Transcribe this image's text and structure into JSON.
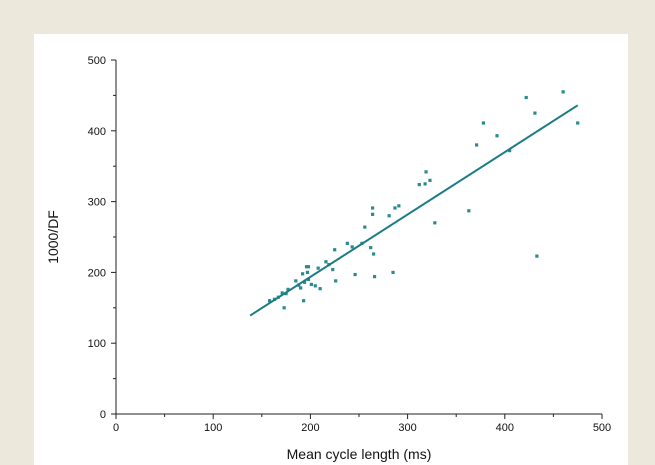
{
  "chart_data": {
    "type": "scatter",
    "xlabel": "Mean cycle length (ms)",
    "ylabel": "1000/DF",
    "xlim": [
      0,
      500
    ],
    "ylim": [
      0,
      500
    ],
    "xticks": [
      0,
      100,
      200,
      300,
      400,
      500
    ],
    "yticks": [
      0,
      100,
      200,
      300,
      400,
      500
    ],
    "x_tick_labels": [
      "0",
      "100",
      "200",
      "300",
      "400",
      "500"
    ],
    "y_tick_labels": [
      "0",
      "100",
      "200",
      "300",
      "400",
      "500"
    ],
    "grid": false,
    "colors": {
      "points": "#2a8a8c",
      "fit_line": "#1a7d83",
      "axis": "#222222",
      "background": "#ece9dc",
      "panel": "#ffffff"
    },
    "points": [
      [
        158,
        160
      ],
      [
        163,
        162
      ],
      [
        167,
        165
      ],
      [
        171,
        171
      ],
      [
        173,
        150
      ],
      [
        175,
        170
      ],
      [
        177,
        176
      ],
      [
        185,
        188
      ],
      [
        188,
        182
      ],
      [
        190,
        178
      ],
      [
        192,
        198
      ],
      [
        193,
        160
      ],
      [
        194,
        186
      ],
      [
        196,
        208
      ],
      [
        197,
        200
      ],
      [
        198,
        208
      ],
      [
        198,
        190
      ],
      [
        201,
        183
      ],
      [
        205,
        181
      ],
      [
        208,
        206
      ],
      [
        210,
        177
      ],
      [
        216,
        215
      ],
      [
        219,
        211
      ],
      [
        223,
        204
      ],
      [
        225,
        232
      ],
      [
        226,
        188
      ],
      [
        238,
        241
      ],
      [
        243,
        236
      ],
      [
        246,
        197
      ],
      [
        253,
        241
      ],
      [
        256,
        264
      ],
      [
        262,
        235
      ],
      [
        264,
        282
      ],
      [
        264,
        291
      ],
      [
        265,
        226
      ],
      [
        266,
        194
      ],
      [
        281,
        280
      ],
      [
        285,
        200
      ],
      [
        287,
        291
      ],
      [
        291,
        294
      ],
      [
        312,
        324
      ],
      [
        318,
        325
      ],
      [
        319,
        342
      ],
      [
        323,
        330
      ],
      [
        328,
        270
      ],
      [
        363,
        287
      ],
      [
        371,
        380
      ],
      [
        378,
        411
      ],
      [
        392,
        393
      ],
      [
        405,
        372
      ],
      [
        422,
        447
      ],
      [
        431,
        425
      ],
      [
        433,
        223
      ],
      [
        460,
        455
      ],
      [
        475,
        411
      ]
    ],
    "fit_line": {
      "x": [
        138,
        475
      ],
      "y": [
        139,
        436
      ]
    }
  }
}
